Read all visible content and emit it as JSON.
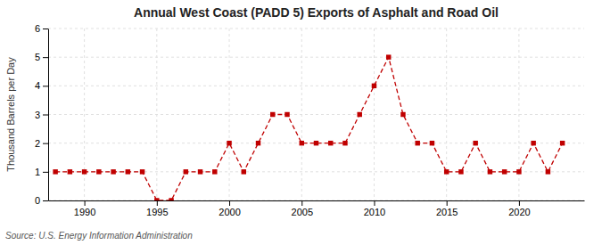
{
  "chart_data": {
    "type": "line",
    "title": "Annual West Coast (PADD 5) Exports of Asphalt and Road Oil",
    "ylabel": "Thousand Barrels per Day",
    "source": "Source: U.S. Energy Information Administration",
    "x": [
      1988,
      1989,
      1990,
      1991,
      1992,
      1993,
      1994,
      1995,
      1996,
      1997,
      1998,
      1999,
      2000,
      2001,
      2002,
      2003,
      2004,
      2005,
      2006,
      2007,
      2008,
      2009,
      2010,
      2011,
      2012,
      2013,
      2014,
      2015,
      2016,
      2017,
      2018,
      2019,
      2020,
      2021,
      2022,
      2023
    ],
    "values": [
      1,
      1,
      1,
      1,
      1,
      1,
      1,
      0,
      0,
      1,
      1,
      1,
      2,
      1,
      2,
      3,
      3,
      2,
      2,
      2,
      2,
      3,
      4,
      5,
      3,
      2,
      2,
      1,
      1,
      2,
      1,
      1,
      1,
      2,
      1,
      2
    ],
    "color": "#c00000",
    "marker": "square",
    "line_style": "dashed",
    "xlim": [
      1987.5,
      2024.5
    ],
    "xticks": [
      1990,
      1995,
      2000,
      2005,
      2010,
      2015,
      2020
    ],
    "ylim": [
      0,
      6
    ],
    "yticks": [
      0,
      1,
      2,
      3,
      4,
      5,
      6
    ],
    "grid": true
  }
}
